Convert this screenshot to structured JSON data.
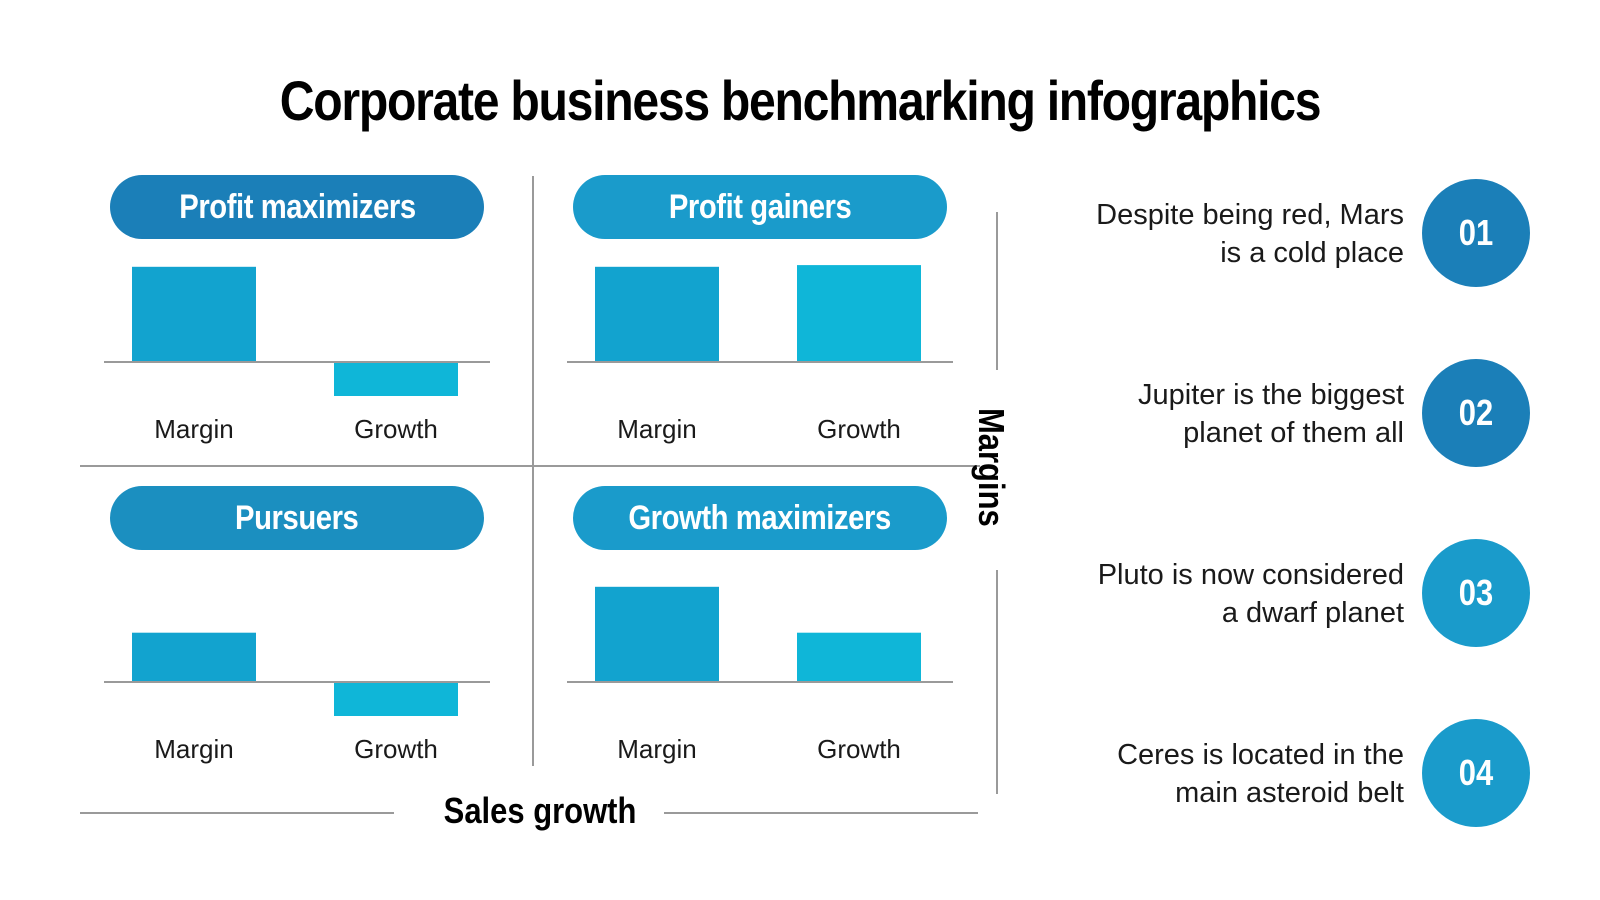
{
  "title": "Corporate business benchmarking infographics",
  "axes": {
    "x_label": "Sales growth",
    "y_label": "Margins"
  },
  "colors": {
    "pill_dark": "#1b7fb8",
    "pill_light": "#1a9bcb",
    "bar_dark": "#12a3cf",
    "bar_light": "#0fb6d8",
    "badge_dark": "#1b7fb8",
    "badge_light": "#1a9bcb",
    "grid": "#9a9a9a"
  },
  "chart_data": [
    {
      "type": "bar",
      "title": "Profit maximizers",
      "categories": [
        "Margin",
        "Growth"
      ],
      "values": [
        2.8,
        -1.0
      ],
      "ylim": [
        -1.4,
        2.8
      ]
    },
    {
      "type": "bar",
      "title": "Profit gainers",
      "categories": [
        "Margin",
        "Growth"
      ],
      "values": [
        2.8,
        2.85
      ],
      "ylim": [
        -1.4,
        2.8
      ]
    },
    {
      "type": "bar",
      "title": "Pursuers",
      "categories": [
        "Margin",
        "Growth"
      ],
      "values": [
        1.45,
        -1.0
      ],
      "ylim": [
        -1.4,
        2.8
      ]
    },
    {
      "type": "bar",
      "title": "Growth maximizers",
      "categories": [
        "Margin",
        "Growth"
      ],
      "values": [
        2.8,
        1.45
      ],
      "ylim": [
        -1.4,
        2.8
      ]
    }
  ],
  "list": [
    {
      "number": "01",
      "text_line1": "Despite being red, Mars",
      "text_line2": "is a cold place"
    },
    {
      "number": "02",
      "text_line1": "Jupiter is the biggest",
      "text_line2": "planet of them all"
    },
    {
      "number": "03",
      "text_line1": "Pluto is now considered",
      "text_line2": "a dwarf planet"
    },
    {
      "number": "04",
      "text_line1": "Ceres is located in the",
      "text_line2": "main asteroid belt"
    }
  ]
}
